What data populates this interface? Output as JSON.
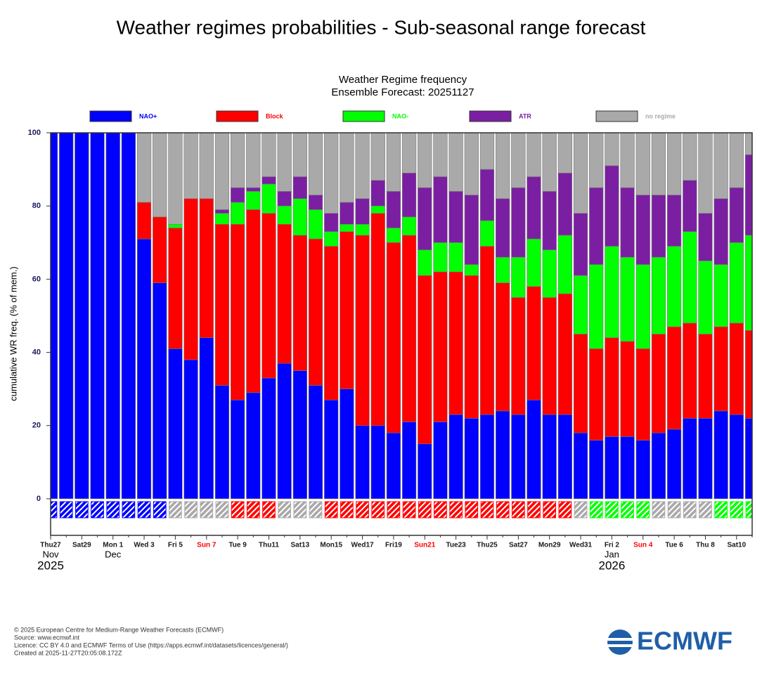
{
  "heading": "Weather regimes probabilities - Sub-seasonal range forecast",
  "chart_data": {
    "type": "stacked-bar",
    "title": "Weather Regime frequency",
    "subtitle": "Ensemble Forecast: 20251127",
    "y_label": "cumulative WR freq. (% of mem.)",
    "categories": [
      "Thu27",
      null,
      "Sat29",
      null,
      "Mon 1",
      null,
      "Wed 3",
      null,
      "Fri 5",
      null,
      "Sun 7",
      null,
      "Tue 9",
      null,
      "Thu11",
      null,
      "Sat13",
      null,
      "Mon15",
      null,
      "Wed17",
      null,
      "Fri19",
      null,
      "Sun21",
      null,
      "Tue23",
      null,
      "Thu25",
      null,
      "Sat27",
      null,
      "Mon29",
      null,
      "Wed31",
      null,
      "Fri 2",
      null,
      "Sun 4",
      null,
      "Tue 6",
      null,
      "Thu 8",
      null,
      "Sat10",
      null
    ],
    "highlight_categories": [
      10,
      24,
      38
    ],
    "highlight_color": "#ff0000",
    "period_labels": [
      {
        "index": 0,
        "month": "Nov",
        "year": "2025"
      },
      {
        "index": 4,
        "month": "Dec"
      },
      {
        "index": 36,
        "month": "Jan",
        "year": "2026"
      }
    ],
    "series": [
      {
        "name": "NAO+",
        "color": "#0000ff",
        "values": [
          100,
          100,
          100,
          100,
          100,
          100,
          71,
          59,
          41,
          38,
          44,
          31,
          27,
          29,
          33,
          37,
          35,
          31,
          27,
          30,
          20,
          20,
          18,
          21,
          15,
          21,
          23,
          22,
          23,
          24,
          23,
          27,
          23,
          23,
          18,
          16,
          17,
          17,
          16,
          18,
          19,
          22,
          22,
          24,
          23,
          22
        ]
      },
      {
        "name": "Block",
        "color": "#ff0000",
        "values": [
          0,
          0,
          0,
          0,
          0,
          0,
          10,
          18,
          33,
          44,
          38,
          44,
          48,
          50,
          45,
          38,
          37,
          40,
          42,
          43,
          52,
          58,
          52,
          51,
          46,
          41,
          39,
          39,
          46,
          35,
          32,
          31,
          32,
          33,
          27,
          25,
          27,
          26,
          25,
          27,
          28,
          26,
          23,
          23,
          25,
          24
        ]
      },
      {
        "name": "NAO-",
        "color": "#00ff00",
        "values": [
          0,
          0,
          0,
          0,
          0,
          0,
          0,
          0,
          1,
          0,
          0,
          3,
          6,
          5,
          8,
          5,
          10,
          8,
          4,
          2,
          3,
          2,
          4,
          5,
          7,
          8,
          8,
          3,
          7,
          7,
          11,
          13,
          13,
          16,
          16,
          23,
          25,
          23,
          23,
          21,
          22,
          25,
          20,
          17,
          22,
          26
        ]
      },
      {
        "name": "ATR",
        "color": "#7b1fa2",
        "values": [
          0,
          0,
          0,
          0,
          0,
          0,
          0,
          0,
          0,
          0,
          0,
          1,
          4,
          1,
          2,
          4,
          6,
          4,
          5,
          6,
          7,
          7,
          10,
          12,
          17,
          18,
          14,
          19,
          14,
          16,
          19,
          17,
          16,
          17,
          17,
          21,
          22,
          19,
          19,
          17,
          14,
          14,
          13,
          18,
          15,
          22
        ]
      },
      {
        "name": "no regime",
        "color": "#a9a9a9",
        "values": [
          0,
          0,
          0,
          0,
          0,
          0,
          19,
          23,
          25,
          18,
          18,
          21,
          15,
          15,
          12,
          16,
          12,
          17,
          22,
          19,
          18,
          13,
          16,
          11,
          15,
          12,
          16,
          17,
          10,
          18,
          15,
          12,
          16,
          11,
          22,
          15,
          9,
          15,
          17,
          17,
          17,
          13,
          22,
          18,
          15,
          6
        ]
      }
    ],
    "dominant_regime": [
      0,
      0,
      0,
      0,
      0,
      0,
      0,
      0,
      4,
      4,
      4,
      4,
      1,
      1,
      1,
      4,
      4,
      4,
      1,
      1,
      1,
      1,
      1,
      1,
      1,
      1,
      1,
      1,
      1,
      1,
      1,
      1,
      1,
      1,
      4,
      2,
      2,
      2,
      2,
      4,
      4,
      4,
      4,
      2,
      2,
      2
    ],
    "ylim": [
      -10,
      100
    ],
    "yticks": [
      0,
      20,
      40,
      60,
      80,
      100
    ]
  },
  "footer": [
    "© 2025 European Centre for Medium-Range Weather Forecasts (ECMWF)",
    "Source: www.ecmwf.int",
    "Licence: CC BY 4.0 and ECMWF Terms of Use (https://apps.ecmwf.int/datasets/licences/general/)",
    "Created at 2025-11-27T20:05:08.172Z"
  ],
  "logo": "ECMWF"
}
